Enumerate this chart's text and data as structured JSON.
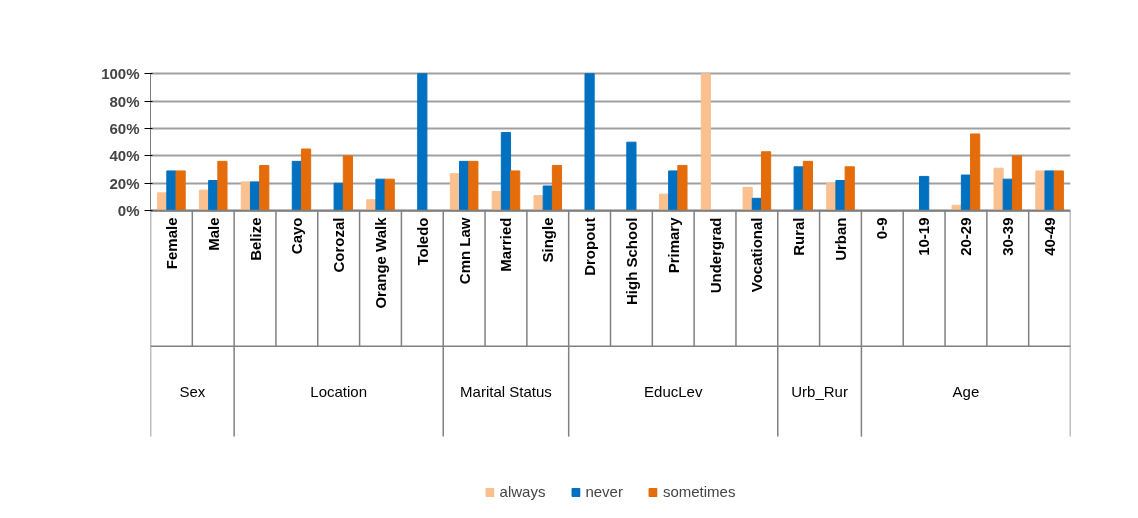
{
  "chart_data": {
    "type": "bar",
    "categories": [
      "Female",
      "Male",
      "Belize",
      "Cayo",
      "Corozal",
      "Orange Walk",
      "Toledo",
      "Cmn Law",
      "Married",
      "Single",
      "Dropout",
      "High School",
      "Primary",
      "Undergrad",
      "Vocational",
      "Rural",
      "Urban",
      "0-9",
      "10-19",
      "20-29",
      "30-39",
      "40-49"
    ],
    "series": [
      {
        "name": "always",
        "color": "#fac090",
        "values": [
          13,
          15,
          21,
          0,
          0,
          8,
          0,
          27,
          14,
          11,
          0,
          0,
          12,
          100,
          17,
          0,
          20,
          0,
          0,
          4,
          31,
          29
        ]
      },
      {
        "name": "never",
        "color": "#0070c0",
        "values": [
          29,
          22,
          21,
          36,
          20,
          23,
          100,
          36,
          57,
          18,
          100,
          50,
          29,
          0,
          9,
          32,
          22,
          0,
          25,
          26,
          23,
          29
        ]
      },
      {
        "name": "sometimes",
        "color": "#e46c0a",
        "values": [
          29,
          36,
          33,
          45,
          40,
          23,
          0,
          36,
          29,
          33,
          0,
          0,
          33,
          0,
          43,
          36,
          32,
          0,
          0,
          56,
          40,
          29
        ]
      }
    ],
    "annotations": [
      "Sex",
      "Location",
      "Marital Status",
      "EducLev",
      "Urb_Rur",
      "Age"
    ],
    "ylim": [
      0,
      100
    ],
    "yticks": [
      {
        "value": 0,
        "label": "0%"
      },
      {
        "value": 20,
        "label": "20%"
      },
      {
        "value": 40,
        "label": "40%"
      },
      {
        "value": 60,
        "label": "60%"
      },
      {
        "value": 80,
        "label": "80%"
      },
      {
        "value": 100,
        "label": "100%"
      }
    ],
    "grid": "y",
    "legend": "bottom"
  }
}
